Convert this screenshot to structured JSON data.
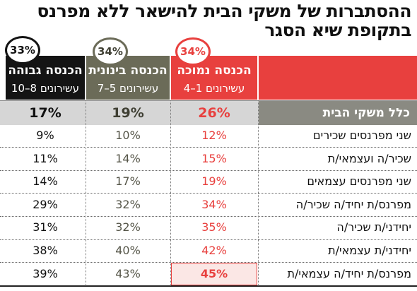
{
  "title_lines": [
    "ההסתברות של משקי הבית להישאר ללא מפרנס",
    "בתקופת שיא הסגר"
  ],
  "columns": [
    {
      "name": "הכנסה נמוכה",
      "sub": "עשירונים 1–4",
      "share": "34%",
      "color": "#e8403e"
    },
    {
      "name": "הכנסה בינונית",
      "sub": "עשירונים 5–7",
      "share": "34%",
      "color": "#6b6b58"
    },
    {
      "name": "הכנסה גבוהה",
      "sub": "עשירונים 8–10",
      "share": "33%",
      "color": "#141414"
    }
  ],
  "total_row": {
    "label": "כלל משקי הבית",
    "values": [
      "26%",
      "19%",
      "17%"
    ]
  },
  "rows": [
    {
      "label": "שני מפרנסים שכירים",
      "values": [
        "12%",
        "10%",
        "9%"
      ]
    },
    {
      "label": "שכיר/ה ועצמאי/ת",
      "values": [
        "15%",
        "14%",
        "11%"
      ]
    },
    {
      "label": "שני מפרנסים עצמאים",
      "values": [
        "19%",
        "17%",
        "14%"
      ]
    },
    {
      "label": "מפרנס/ת יחיד/ה שכיר/ה",
      "values": [
        "34%",
        "32%",
        "29%"
      ]
    },
    {
      "label": "יחידני/ת שכיר/ה",
      "values": [
        "35%",
        "32%",
        "31%"
      ]
    },
    {
      "label": "יחידני/ת עצמאי/ת",
      "values": [
        "42%",
        "40%",
        "38%"
      ]
    },
    {
      "label": "מפרנס/ת יחיד/ה עצמאי/ת",
      "values": [
        "45%",
        "43%",
        "39%"
      ]
    }
  ],
  "highlight": {
    "row": 6,
    "col": 0
  },
  "colors": {
    "red": "#e8403e",
    "olive": "#6b6b58",
    "black": "#141414",
    "gray_band": "#d6d6d6",
    "label_band": "#8a8a82",
    "highlight_bg": "#fbe7e5"
  },
  "chart_data": {
    "type": "table",
    "title": "ההסתברות של משקי הבית להישאר ללא מפרנס בתקופת שיא הסגר",
    "categories": [
      "כלל משקי הבית",
      "שני מפרנסים שכירים",
      "שכיר/ה ועצמאי/ת",
      "שני מפרנסים עצמאים",
      "מפרנס/ת יחיד/ה שכיר/ה",
      "יחידני/ת שכיר/ה",
      "יחידני/ת עצמאי/ת",
      "מפרנס/ת יחיד/ה עצמאי/ת"
    ],
    "series": [
      {
        "name": "הכנסה נמוכה",
        "values": [
          26,
          12,
          15,
          19,
          34,
          35,
          42,
          45
        ]
      },
      {
        "name": "הכנסה בינונית",
        "values": [
          19,
          10,
          14,
          17,
          32,
          32,
          40,
          43
        ]
      },
      {
        "name": "הכנסה גבוהה",
        "values": [
          17,
          9,
          11,
          14,
          29,
          31,
          38,
          39
        ]
      }
    ]
  }
}
